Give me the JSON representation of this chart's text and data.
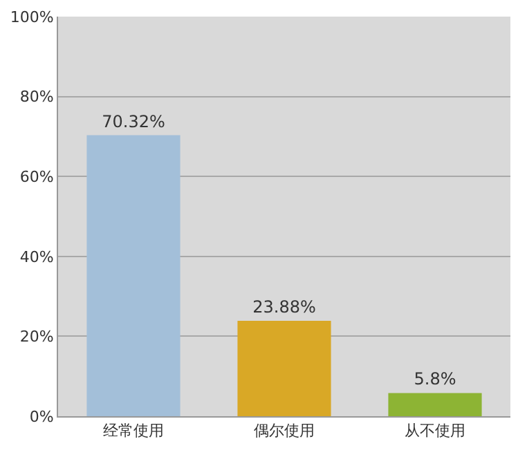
{
  "chart_data": {
    "type": "bar",
    "categories": [
      "经常使用",
      "偶尔使用",
      "从不使用"
    ],
    "values": [
      70.32,
      23.88,
      5.8
    ],
    "colors": [
      "#a3bfd9",
      "#d9a826",
      "#8db434"
    ],
    "value_labels": [
      "70.32%",
      "23.88%",
      "5.8%"
    ],
    "ylim": [
      0,
      100
    ],
    "yticks": [
      {
        "value": 0,
        "label": "0%"
      },
      {
        "value": 20,
        "label": "20%"
      },
      {
        "value": 40,
        "label": "40%"
      },
      {
        "value": 60,
        "label": "60%"
      },
      {
        "value": 80,
        "label": "80%"
      },
      {
        "value": 100,
        "label": "100%"
      }
    ],
    "grid": "y"
  }
}
